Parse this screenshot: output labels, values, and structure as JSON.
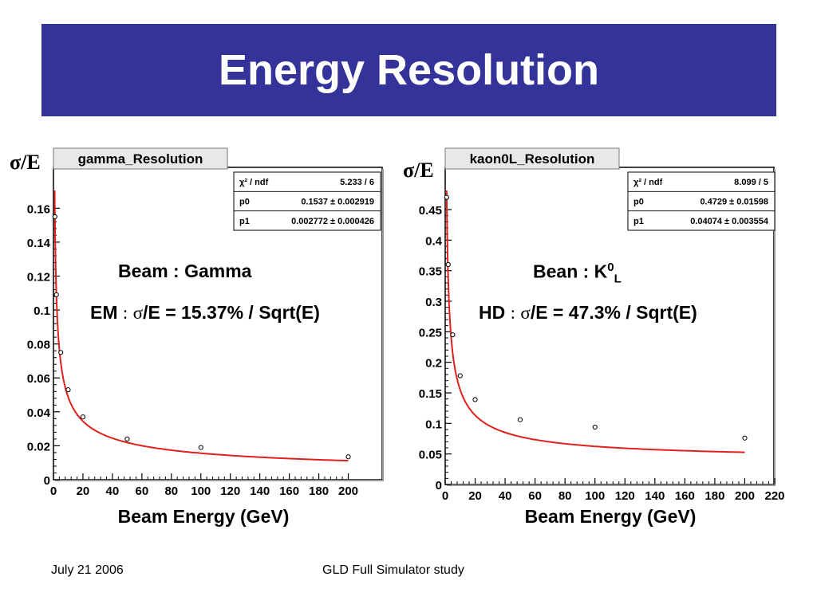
{
  "title": "Energy Resolution",
  "footer": {
    "date": "July 21 2006",
    "center": "GLD Full Simulator study"
  },
  "colors": {
    "title_bar": "#333399",
    "fit_curve": "#e0201c",
    "frame": "#000000"
  },
  "chart_data": [
    {
      "type": "scatter",
      "title": "gamma_Resolution",
      "ylabel": "σ/E",
      "xlabel": "Beam Energy (GeV)",
      "xlim": [
        0,
        210
      ],
      "ylim": [
        0,
        0.17
      ],
      "xticks": [
        0,
        20,
        40,
        60,
        80,
        100,
        120,
        140,
        160,
        180,
        200
      ],
      "yticks": [
        0,
        0.02,
        0.04,
        0.06,
        0.08,
        0.1,
        0.12,
        0.14,
        0.16
      ],
      "ytick_labels": [
        "0",
        "0.02",
        "0.04",
        "0.06",
        "0.08",
        "0.1",
        "0.12",
        "0.14",
        "0.16"
      ],
      "grid": false,
      "points": [
        {
          "x": 1,
          "y": 0.155
        },
        {
          "x": 2,
          "y": 0.109
        },
        {
          "x": 5,
          "y": 0.075
        },
        {
          "x": 10,
          "y": 0.053
        },
        {
          "x": 20,
          "y": 0.037
        },
        {
          "x": 50,
          "y": 0.024
        },
        {
          "x": 100,
          "y": 0.019
        },
        {
          "x": 200,
          "y": 0.0135
        }
      ],
      "fit": {
        "p0": 0.1537,
        "p1": 0.002772
      },
      "stats": [
        {
          "label": "χ² / ndf",
          "value": "5.233 / 6"
        },
        {
          "label": "p0",
          "value": "0.1537 ± 0.002919"
        },
        {
          "label": "p1",
          "value": "0.002772 ± 0.000426"
        }
      ],
      "annotations": {
        "beam": "Beam : Gamma",
        "formula_prefix": "EM",
        "formula_colon": ":",
        "formula_sigma": "σ",
        "formula_rest": "/E = 15.37% / Sqrt(E)"
      }
    },
    {
      "type": "scatter",
      "title": "kaon0L_Resolution",
      "ylabel": "σ/E",
      "xlabel": "Beam Energy (GeV)",
      "xlim": [
        0,
        220
      ],
      "ylim": [
        0,
        0.48
      ],
      "xticks": [
        0,
        20,
        40,
        60,
        80,
        100,
        120,
        140,
        160,
        180,
        200,
        220
      ],
      "yticks": [
        0,
        0.05,
        0.1,
        0.15,
        0.2,
        0.25,
        0.3,
        0.35,
        0.4,
        0.45
      ],
      "ytick_labels": [
        "0",
        "0.05",
        "0.1",
        "0.15",
        "0.2",
        "0.25",
        "0.3",
        "0.35",
        "0.4",
        "0.45"
      ],
      "grid": false,
      "points": [
        {
          "x": 1,
          "y": 0.47
        },
        {
          "x": 2,
          "y": 0.36
        },
        {
          "x": 5,
          "y": 0.245
        },
        {
          "x": 10,
          "y": 0.178
        },
        {
          "x": 20,
          "y": 0.139
        },
        {
          "x": 50,
          "y": 0.106
        },
        {
          "x": 100,
          "y": 0.094
        },
        {
          "x": 200,
          "y": 0.076
        }
      ],
      "fit": {
        "p0": 0.4729,
        "p1": 0.04074
      },
      "stats": [
        {
          "label": "χ² / ndf",
          "value": "8.099 / 5"
        },
        {
          "label": "p0",
          "value": "0.4729 ± 0.01598"
        },
        {
          "label": "p1",
          "value": "0.04074 ± 0.003554"
        }
      ],
      "annotations": {
        "beam_prefix": "Bean : K",
        "beam_sup": "0",
        "beam_sub": "L",
        "formula_prefix": "HD",
        "formula_colon": ":",
        "formula_sigma": "σ",
        "formula_rest": "/E = 47.3% / Sqrt(E)"
      }
    }
  ]
}
